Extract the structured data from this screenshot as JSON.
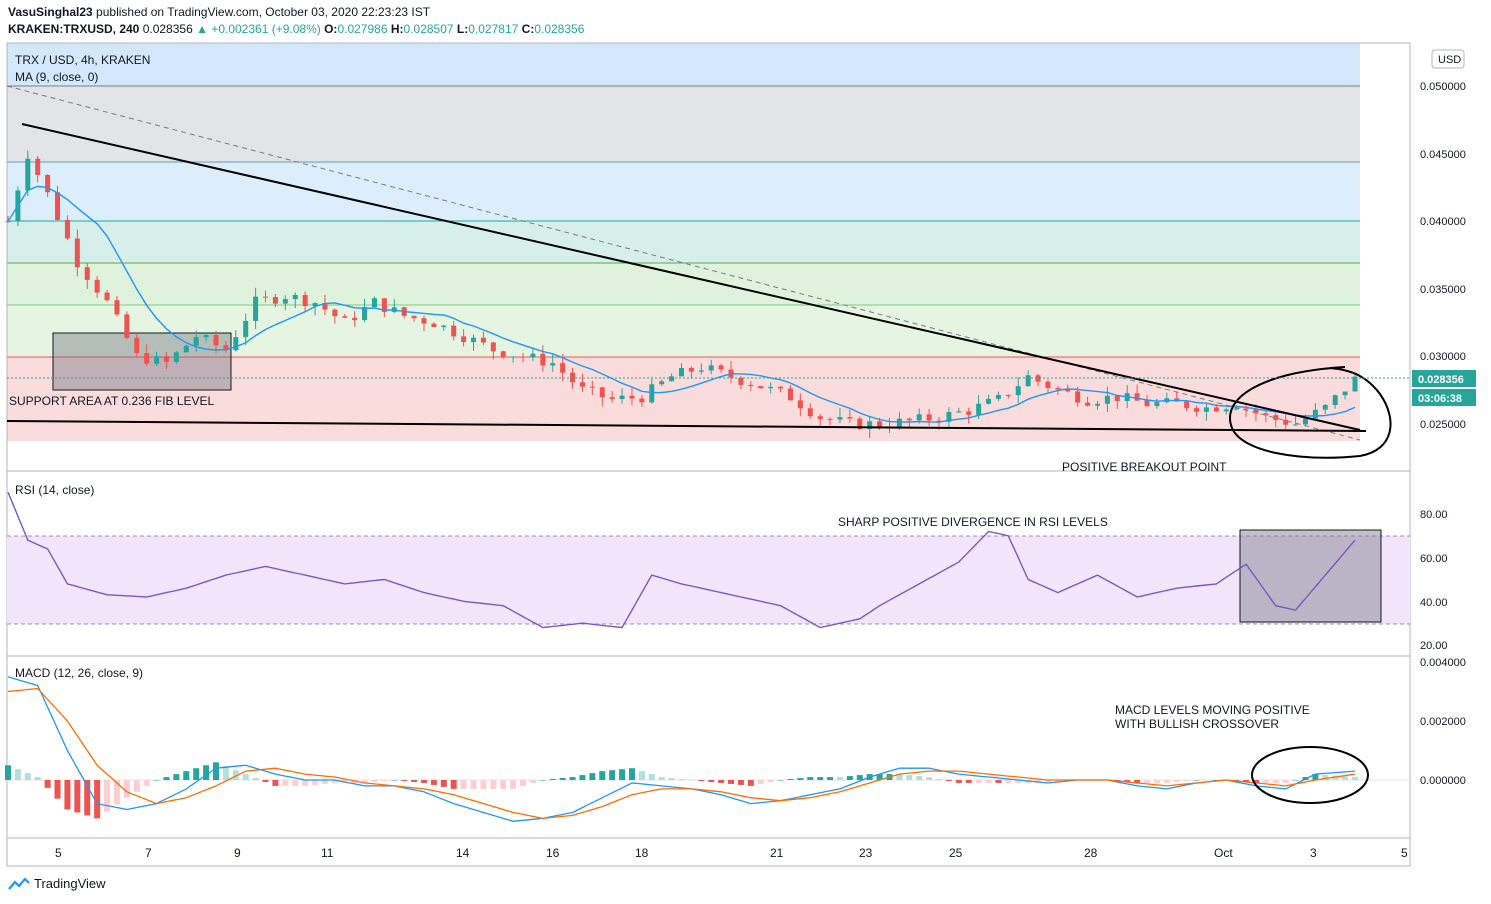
{
  "header": {
    "author": "VasuSinghal23",
    "published": "published on TradingView.com, October 03, 2020 22:23:23 IST",
    "symbol": "KRAKEN:TRXUSD, 240",
    "last": "0.028356",
    "change": "▲ +0.002361 (+9.08%)",
    "o_label": "O:",
    "o": "0.027986",
    "h_label": "H:",
    "h": "0.028507",
    "l_label": "L:",
    "l": "0.027817",
    "c_label": "C:",
    "c": "0.028356"
  },
  "main_pane": {
    "title": "TRX / USD, 4h, KRAKEN",
    "ma_label": "MA (9, close, 0)",
    "currency": "USD",
    "price_ticks": [
      "0.050000",
      "0.045000",
      "0.040000",
      "0.035000",
      "0.030000",
      "0.025000"
    ],
    "last_price_tag": "0.028356",
    "countdown_tag": "03:06:38",
    "annotations": {
      "support": "SUPPORT AREA  AT 0.236 FIB LEVEL",
      "breakout": "POSITIVE BREAKOUT POINT"
    }
  },
  "rsi_pane": {
    "label": "RSI (14, close)",
    "ticks": [
      "80.00",
      "60.00",
      "40.00",
      "20.00"
    ],
    "annotation": "SHARP POSITIVE DIVERGENCE IN RSI LEVELS"
  },
  "macd_pane": {
    "label": "MACD (12, 26, close, 9)",
    "ticks": [
      "0.004000",
      "0.002000",
      "0.000000"
    ],
    "annotation_line1": "MACD LEVELS MOVING POSITIVE",
    "annotation_line2": "WITH BULLISH CROSSOVER"
  },
  "x_axis": {
    "labels": [
      "5",
      "7",
      "9",
      "11",
      "14",
      "16",
      "18",
      "21",
      "23",
      "25",
      "28",
      "Oct",
      "3",
      "5"
    ]
  },
  "footer": {
    "brand": "TradingView",
    "icon": "tradingview-logo-icon"
  },
  "colors": {
    "up": "#26a69a",
    "down": "#ef5350",
    "ma": "#2196f3",
    "rsi": "#7e57c2",
    "macd": "#2196f3",
    "signal": "#ff6d00",
    "trendline": "#000000"
  },
  "chart_data": {
    "type": "candlestick",
    "title": "TRX / USD, 4h, KRAKEN",
    "ylim": [
      0.023,
      0.053
    ],
    "fib_levels": [
      0.05,
      0.0443,
      0.04,
      0.037,
      0.0338,
      0.03
    ],
    "price_path": [
      [
        0,
        0.04
      ],
      [
        2,
        0.045
      ],
      [
        4,
        0.042
      ],
      [
        7,
        0.037
      ],
      [
        10,
        0.034
      ],
      [
        13,
        0.03
      ],
      [
        16,
        0.0295
      ],
      [
        19,
        0.0315
      ],
      [
        22,
        0.0305
      ],
      [
        25,
        0.034
      ],
      [
        28,
        0.0345
      ],
      [
        31,
        0.034
      ],
      [
        34,
        0.0325
      ],
      [
        37,
        0.034
      ],
      [
        40,
        0.033
      ],
      [
        43,
        0.0325
      ],
      [
        46,
        0.0315
      ],
      [
        49,
        0.0305
      ],
      [
        52,
        0.03
      ],
      [
        55,
        0.0295
      ],
      [
        58,
        0.0275
      ],
      [
        61,
        0.0268
      ],
      [
        64,
        0.027
      ],
      [
        67,
        0.0285
      ],
      [
        70,
        0.0292
      ],
      [
        73,
        0.0285
      ],
      [
        76,
        0.0278
      ],
      [
        79,
        0.027
      ],
      [
        82,
        0.0255
      ],
      [
        85,
        0.025
      ],
      [
        88,
        0.025
      ],
      [
        91,
        0.0252
      ],
      [
        94,
        0.0255
      ],
      [
        97,
        0.026
      ],
      [
        100,
        0.0268
      ],
      [
        103,
        0.0285
      ],
      [
        106,
        0.0275
      ],
      [
        109,
        0.0268
      ],
      [
        112,
        0.027
      ],
      [
        115,
        0.0265
      ],
      [
        118,
        0.0265
      ],
      [
        121,
        0.0262
      ],
      [
        124,
        0.0265
      ],
      [
        127,
        0.0255
      ],
      [
        130,
        0.025
      ],
      [
        133,
        0.0262
      ],
      [
        136,
        0.0283
      ]
    ],
    "rsi_path": [
      [
        0,
        90
      ],
      [
        2,
        68
      ],
      [
        4,
        64
      ],
      [
        6,
        48
      ],
      [
        10,
        43
      ],
      [
        14,
        42
      ],
      [
        18,
        46
      ],
      [
        22,
        52
      ],
      [
        26,
        56
      ],
      [
        30,
        52
      ],
      [
        34,
        48
      ],
      [
        38,
        50
      ],
      [
        42,
        44
      ],
      [
        46,
        40
      ],
      [
        50,
        38
      ],
      [
        54,
        28
      ],
      [
        58,
        30
      ],
      [
        62,
        28
      ],
      [
        65,
        52
      ],
      [
        68,
        48
      ],
      [
        72,
        44
      ],
      [
        76,
        40
      ],
      [
        78,
        38
      ],
      [
        82,
        28
      ],
      [
        86,
        32
      ],
      [
        88,
        38
      ],
      [
        92,
        48
      ],
      [
        96,
        58
      ],
      [
        99,
        72
      ],
      [
        101,
        70
      ],
      [
        103,
        50
      ],
      [
        106,
        44
      ],
      [
        110,
        52
      ],
      [
        114,
        42
      ],
      [
        118,
        46
      ],
      [
        122,
        48
      ],
      [
        125,
        57
      ],
      [
        128,
        38
      ],
      [
        130,
        36
      ],
      [
        133,
        52
      ],
      [
        136,
        68
      ]
    ],
    "macd_path": [
      [
        0,
        0.0035
      ],
      [
        3,
        0.0032
      ],
      [
        6,
        0.001
      ],
      [
        9,
        -0.0008
      ],
      [
        12,
        -0.001
      ],
      [
        15,
        -0.0008
      ],
      [
        18,
        -0.0003
      ],
      [
        21,
        0.0004
      ],
      [
        24,
        0.0005
      ],
      [
        27,
        0.0002
      ],
      [
        30,
        0.0
      ],
      [
        33,
        0.0
      ],
      [
        36,
        -0.0002
      ],
      [
        39,
        -0.0002
      ],
      [
        42,
        -0.0004
      ],
      [
        45,
        -0.0008
      ],
      [
        48,
        -0.0011
      ],
      [
        51,
        -0.0014
      ],
      [
        54,
        -0.0013
      ],
      [
        57,
        -0.0011
      ],
      [
        60,
        -0.0006
      ],
      [
        63,
        -0.0001
      ],
      [
        66,
        -0.0002
      ],
      [
        69,
        -0.0003
      ],
      [
        72,
        -0.0005
      ],
      [
        75,
        -0.0008
      ],
      [
        78,
        -0.0007
      ],
      [
        81,
        -0.0005
      ],
      [
        84,
        -0.0003
      ],
      [
        87,
        0.0001
      ],
      [
        90,
        0.0004
      ],
      [
        93,
        0.0004
      ],
      [
        96,
        0.0002
      ],
      [
        99,
        0.0001
      ],
      [
        102,
        0.0
      ],
      [
        105,
        -0.0001
      ],
      [
        108,
        0.0
      ],
      [
        111,
        0.0
      ],
      [
        114,
        -0.0002
      ],
      [
        117,
        -0.0003
      ],
      [
        120,
        -0.0001
      ],
      [
        123,
        0.0
      ],
      [
        126,
        -0.0002
      ],
      [
        129,
        -0.0003
      ],
      [
        132,
        0.0002
      ],
      [
        136,
        0.0003
      ]
    ],
    "signal_path": [
      [
        0,
        0.003
      ],
      [
        3,
        0.0031
      ],
      [
        6,
        0.002
      ],
      [
        9,
        0.0005
      ],
      [
        12,
        -0.0004
      ],
      [
        15,
        -0.0008
      ],
      [
        18,
        -0.0006
      ],
      [
        21,
        -0.0002
      ],
      [
        24,
        0.0003
      ],
      [
        27,
        0.0004
      ],
      [
        30,
        0.0002
      ],
      [
        33,
        0.0001
      ],
      [
        36,
        -0.0001
      ],
      [
        39,
        -0.0002
      ],
      [
        42,
        -0.0003
      ],
      [
        45,
        -0.0005
      ],
      [
        48,
        -0.0008
      ],
      [
        51,
        -0.0011
      ],
      [
        54,
        -0.0013
      ],
      [
        57,
        -0.0012
      ],
      [
        60,
        -0.0009
      ],
      [
        63,
        -0.0005
      ],
      [
        66,
        -0.0003
      ],
      [
        69,
        -0.0003
      ],
      [
        72,
        -0.0004
      ],
      [
        75,
        -0.0006
      ],
      [
        78,
        -0.0007
      ],
      [
        81,
        -0.0006
      ],
      [
        84,
        -0.0004
      ],
      [
        87,
        -0.0001
      ],
      [
        90,
        0.0002
      ],
      [
        93,
        0.0003
      ],
      [
        96,
        0.0003
      ],
      [
        99,
        0.0002
      ],
      [
        102,
        0.0001
      ],
      [
        105,
        0.0
      ],
      [
        108,
        0.0
      ],
      [
        111,
        0.0
      ],
      [
        114,
        -0.0001
      ],
      [
        117,
        -0.0002
      ],
      [
        120,
        -0.0001
      ],
      [
        123,
        0.0
      ],
      [
        126,
        -0.0001
      ],
      [
        129,
        -0.0002
      ],
      [
        132,
        0.0
      ],
      [
        136,
        0.0002
      ]
    ]
  }
}
